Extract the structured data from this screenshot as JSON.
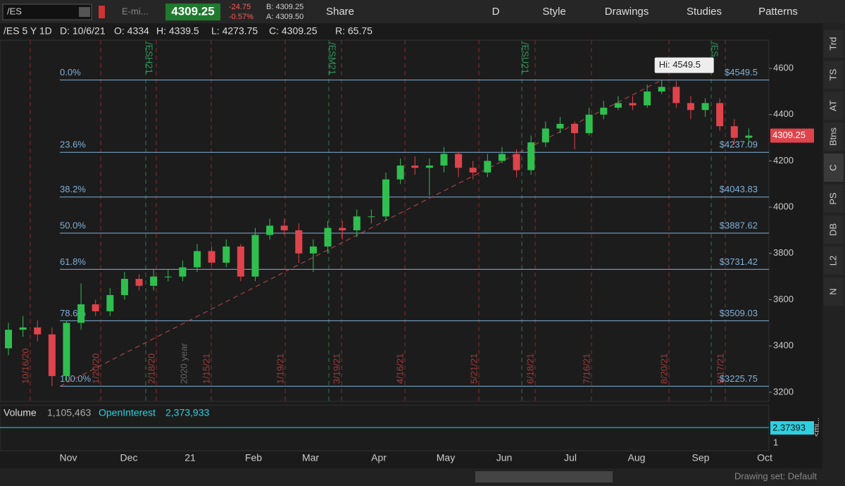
{
  "toolbar": {
    "symbol": "/ES",
    "description": "E-mi...",
    "last": "4309.25",
    "change": "-24.75",
    "change_pct": "-0.57%",
    "bid": "B: 4309.25",
    "ask": "A: 4309.50",
    "buttons": [
      "Share",
      "D",
      "Style",
      "Drawings",
      "Studies",
      "Patterns"
    ]
  },
  "info_bar": [
    "/ES 5 Y 1D",
    "D: 10/6/21",
    "O: 4334",
    "H: 4339.5",
    "L: 4273.75",
    "C: 4309.25",
    "R: 65.75"
  ],
  "chart_data": {
    "type": "candlestick",
    "open": [
      3390,
      3470,
      3480,
      3450,
      3270,
      3500,
      3580,
      3550,
      3620,
      3690,
      3660,
      3700,
      3700,
      3740,
      3810,
      3760,
      3830,
      3700,
      3880,
      3920,
      3900,
      3800,
      3830,
      3910,
      3900,
      3960,
      3960,
      4120,
      4180,
      4170,
      4180,
      4230,
      4170,
      4150,
      4200,
      4230,
      4160,
      4280,
      4340,
      4360,
      4320,
      4400,
      4430,
      4450,
      4440,
      4500,
      4520,
      4450,
      4420,
      4450,
      4350,
      4300
    ],
    "high": [
      3500,
      3530,
      3510,
      3480,
      3510,
      3670,
      3600,
      3650,
      3720,
      3710,
      3730,
      3730,
      3770,
      3840,
      3830,
      3860,
      3840,
      3910,
      3950,
      3950,
      3930,
      3860,
      3940,
      3940,
      3990,
      3990,
      4150,
      4210,
      4220,
      4210,
      4260,
      4240,
      4200,
      4230,
      4260,
      4250,
      4310,
      4370,
      4390,
      4370,
      4430,
      4460,
      4480,
      4480,
      4530,
      4549.5,
      4545,
      4480,
      4470,
      4470,
      4380,
      4340
    ],
    "low": [
      3360,
      3440,
      3420,
      3225.75,
      3250,
      3470,
      3530,
      3530,
      3600,
      3640,
      3640,
      3680,
      3680,
      3720,
      3750,
      3740,
      3680,
      3680,
      3860,
      3880,
      3760,
      3720,
      3800,
      3860,
      3870,
      3930,
      3940,
      4100,
      4140,
      4050,
      4150,
      4130,
      4120,
      4130,
      4190,
      4130,
      4140,
      4260,
      4320,
      4250,
      4310,
      4380,
      4420,
      4420,
      4430,
      4490,
      4430,
      4380,
      4390,
      4330,
      4270,
      4273.75
    ],
    "close": [
      3470,
      3480,
      3450,
      3270,
      3500,
      3580,
      3550,
      3620,
      3690,
      3660,
      3700,
      3700,
      3740,
      3810,
      3760,
      3830,
      3700,
      3880,
      3920,
      3900,
      3800,
      3830,
      3910,
      3900,
      3960,
      3960,
      4120,
      4180,
      4170,
      4180,
      4230,
      4170,
      4150,
      4200,
      4230,
      4160,
      4280,
      4340,
      4360,
      4320,
      4400,
      4430,
      4450,
      4440,
      4500,
      4520,
      4450,
      4420,
      4450,
      4350,
      4300,
      4309.25
    ],
    "up_color": "#2fbf4f",
    "down_color": "#e0434b",
    "ylim": [
      3160,
      4722
    ],
    "yticks": [
      3200,
      3400,
      3600,
      3800,
      4000,
      4200,
      4400,
      4600
    ],
    "x_labels": [
      "Nov",
      "Dec",
      "21",
      "Feb",
      "Mar",
      "Apr",
      "May",
      "Jun",
      "Jul",
      "Aug",
      "Sep",
      "Oct"
    ],
    "fib_levels": [
      {
        "label": "0.0%",
        "value": 4549.5,
        "price_label": "$4549.5"
      },
      {
        "label": "23.6%",
        "value": 4237.09,
        "price_label": "$4237.09"
      },
      {
        "label": "38.2%",
        "value": 4043.83,
        "price_label": "$4043.83"
      },
      {
        "label": "50.0%",
        "value": 3887.62,
        "price_label": "$3887.62"
      },
      {
        "label": "61.8%",
        "value": 3731.42,
        "price_label": "$3731.42"
      },
      {
        "label": "78.6%",
        "value": 3509.03,
        "price_label": "$3509.03"
      },
      {
        "label": "100.0%",
        "value": 3225.75,
        "price_label": "$3225.75"
      }
    ],
    "high_label": "Hi: 4549.5",
    "last_price": 4309.25,
    "date_markers": [
      "10/16/20",
      "1/20/20",
      "2/18/20",
      "1/15/21",
      "1/19/21",
      "3/19/21",
      "4/16/21",
      "5/21/21",
      "6/18/21",
      "7/16/21",
      "8/20/21",
      "9/17/21"
    ],
    "year_marker": "2020 year",
    "contract_markers": [
      "/ESH21",
      "/ESM21",
      "/ESU21",
      "/ES"
    ]
  },
  "volume_pane": {
    "volume_label": "Volume",
    "volume": "1,105,463",
    "oi_label": "OpenInterest",
    "oi": "2,373,933",
    "oi_tag": "2.37393",
    "axis_label": "1",
    "side_label": "<mi..."
  },
  "sidebar_tabs": [
    "Trd",
    "TS",
    "AT",
    "Btns",
    "C",
    "PS",
    "DB",
    "L2",
    "N"
  ],
  "status": "Drawing set: Default"
}
